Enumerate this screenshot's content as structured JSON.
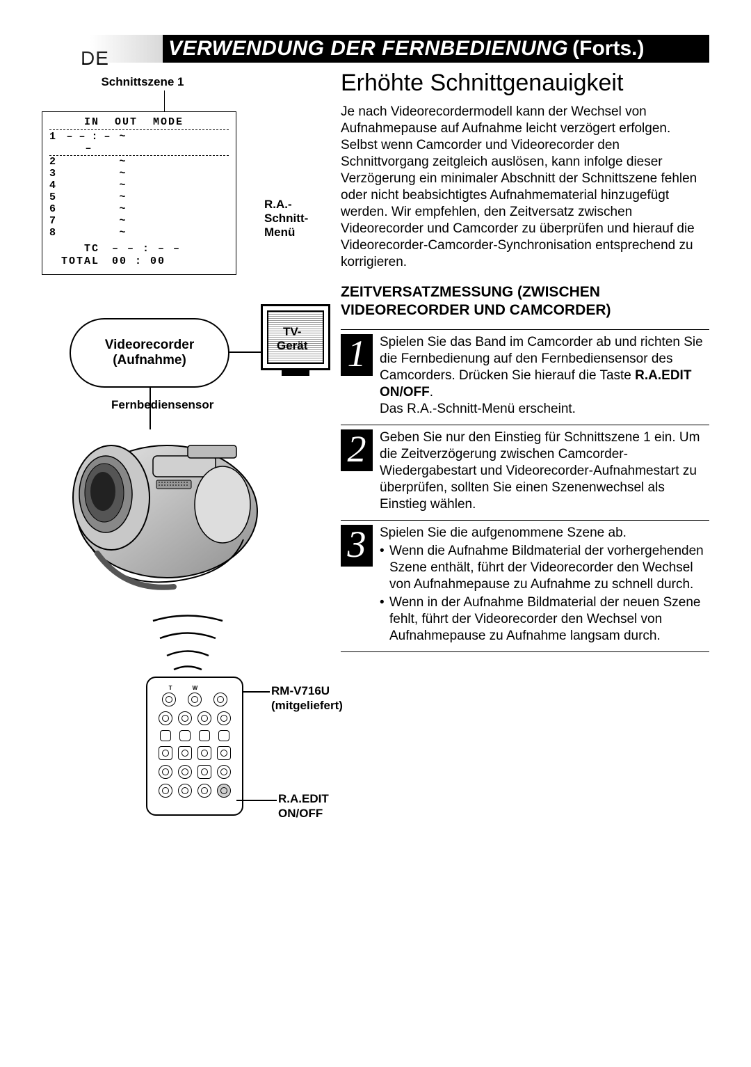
{
  "page_marker": "DE",
  "title_main": "VERWENDUNG DER FERNBEDIENUNG",
  "title_cont": "(Forts.)",
  "left": {
    "scene_label": "Schnittszene 1",
    "menu_label": "R.A.-Schnitt-Menü",
    "menu": {
      "headers": {
        "in": "IN",
        "out": "OUT",
        "mode": "MODE"
      },
      "row1": {
        "n": "1",
        "in": "– – : – –",
        "tilde": "~",
        "out": "",
        "mode": ""
      },
      "rows_tilde": [
        "2",
        "3",
        "4",
        "5",
        "6",
        "7",
        "8"
      ],
      "footer": {
        "tc_lbl": "TC",
        "tc_val": "– – : – –",
        "total_lbl": "TOTAL",
        "total_val": "00 : 00"
      }
    },
    "diagram": {
      "vcr_line1": "Videorecorder",
      "vcr_line2": "(Aufnahme)",
      "tv_line1": "TV-",
      "tv_line2": "Gerät",
      "sensor": "Fernbediensensor",
      "tw_t": "T",
      "tw_w": "W",
      "remote_model_line1": "RM-V716U",
      "remote_model_line2": "(mitgeliefert)",
      "raedit_line1": "R.A.EDIT",
      "raedit_line2": "ON/OFF"
    }
  },
  "right": {
    "section_title": "Erhöhte Schnittgenauigkeit",
    "intro": "Je nach Videorecordermodell kann der Wechsel von Aufnahmepause auf Aufnahme leicht verzögert erfolgen. Selbst wenn Camcorder und Videorecorder den Schnittvorgang zeitgleich auslösen, kann infolge dieser Verzögerung ein minimaler Abschnitt der Schnittszene fehlen oder nicht beabsichtigtes Aufnahmematerial hinzugefügt werden. Wir empfehlen, den Zeitversatz zwischen Videorecorder und Camcorder zu überprüfen und hierauf die Videorecorder-Camcorder-Synchronisation entsprechend zu korrigieren.",
    "sub": "ZEITVERSATZMESSUNG (ZWISCHEN VIDEORECORDER UND CAMCORDER)",
    "steps": {
      "s1": {
        "num": "1",
        "text_a": "Spielen Sie das Band im Camcorder ab und richten Sie die Fernbedienung auf den Fernbediensensor des Camcorders. Drücken Sie hierauf die Taste ",
        "text_b": "R.A.EDIT ON/OFF",
        "text_c": ".",
        "text_d": "Das R.A.-Schnitt-Menü erscheint."
      },
      "s2": {
        "num": "2",
        "text": "Geben Sie nur den Einstieg für Schnittszene 1 ein. Um die Zeitverzögerung zwischen Camcorder-Wiedergabestart und Videorecorder-Aufnahmestart zu überprüfen, sollten Sie einen Szenenwechsel als Einstieg wählen."
      },
      "s3": {
        "num": "3",
        "text": "Spielen Sie die aufgenommene Szene ab.",
        "b1": "Wenn die Aufnahme Bildmaterial der vorhergehenden Szene enthält, führt der Videorecorder den Wechsel von Aufnahmepause zu Aufnahme zu schnell durch.",
        "b2": "Wenn in der Aufnahme Bildmaterial der neuen Szene fehlt, führt der Videorecorder den Wechsel von Aufnahmepause zu Aufnahme langsam durch."
      }
    }
  },
  "colors": {
    "black": "#000000",
    "white": "#ffffff"
  }
}
